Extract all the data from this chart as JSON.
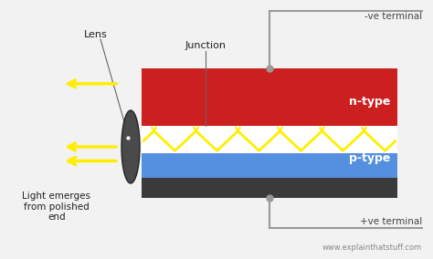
{
  "bg_color": "#f2f2f2",
  "n_type_color": "#cc2020",
  "p_type_color": "#5590e0",
  "junction_bg": "#ffffff",
  "base_color": "#3a3a3a",
  "lens_color": "#4a4a4a",
  "wire_color": "#999999",
  "arrow_color": "#ffee00",
  "label_lens": "Lens",
  "label_junction": "Junction",
  "label_n_type": "n-type",
  "label_p_type": "p-type",
  "label_light": "Light emerges\nfrom polished\nend",
  "label_neg": "-ve terminal",
  "label_pos": "+ve terminal",
  "label_website": "www.explainthatstuff.com"
}
